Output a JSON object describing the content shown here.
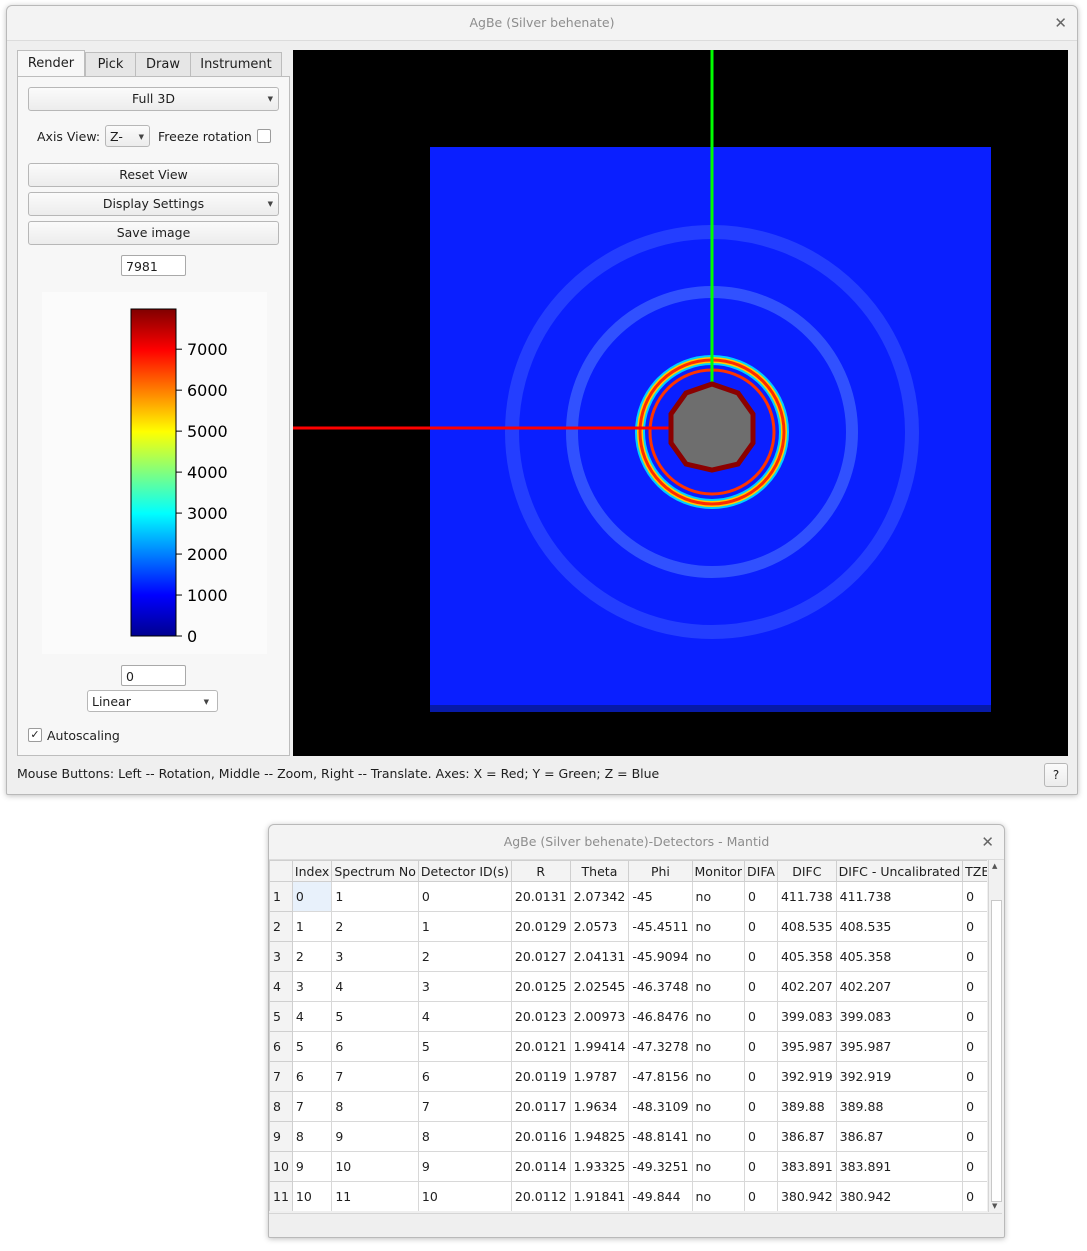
{
  "main_window": {
    "title": "AgBe (Silver behenate)",
    "tabs": [
      "Render",
      "Pick",
      "Draw",
      "Instrument"
    ],
    "render_mode": "Full 3D",
    "axis_view_label": "Axis View:",
    "axis_view_value": "Z-",
    "freeze_rotation_label": "Freeze rotation",
    "freeze_rotation_checked": false,
    "reset_view_label": "Reset View",
    "display_settings_label": "Display Settings",
    "save_image_label": "Save image",
    "colorbar_max": "7981",
    "colorbar_min": "0",
    "colorbar_ticks": [
      "7000",
      "6000",
      "5000",
      "4000",
      "3000",
      "2000",
      "1000",
      "0"
    ],
    "scale_type": "Linear",
    "autoscaling_label": "Autoscaling",
    "autoscaling_checked": true,
    "status_text": "Mouse Buttons: Left -- Rotation, Middle -- Zoom, Right -- Translate. Axes: X = Red; Y = Green; Z = Blue",
    "help_label": "?"
  },
  "table_window": {
    "title": "AgBe (Silver behenate)-Detectors - Mantid",
    "columns": [
      "Index",
      "Spectrum No",
      "Detector ID(s)",
      "R",
      "Theta",
      "Phi",
      "Monitor",
      "DIFA",
      "DIFC",
      "DIFC - Uncalibrated",
      "TZERO"
    ],
    "row_headers": [
      "1",
      "2",
      "3",
      "4",
      "5",
      "6",
      "7",
      "8",
      "9",
      "10",
      "11"
    ],
    "rows": [
      [
        "0",
        "1",
        "0",
        "20.0131",
        "2.07342",
        "-45",
        "no",
        "0",
        "411.738",
        "411.738",
        "0"
      ],
      [
        "1",
        "2",
        "1",
        "20.0129",
        "2.0573",
        "-45.4511",
        "no",
        "0",
        "408.535",
        "408.535",
        "0"
      ],
      [
        "2",
        "3",
        "2",
        "20.0127",
        "2.04131",
        "-45.9094",
        "no",
        "0",
        "405.358",
        "405.358",
        "0"
      ],
      [
        "3",
        "4",
        "3",
        "20.0125",
        "2.02545",
        "-46.3748",
        "no",
        "0",
        "402.207",
        "402.207",
        "0"
      ],
      [
        "4",
        "5",
        "4",
        "20.0123",
        "2.00973",
        "-46.8476",
        "no",
        "0",
        "399.083",
        "399.083",
        "0"
      ],
      [
        "5",
        "6",
        "5",
        "20.0121",
        "1.99414",
        "-47.3278",
        "no",
        "0",
        "395.987",
        "395.987",
        "0"
      ],
      [
        "6",
        "7",
        "6",
        "20.0119",
        "1.9787",
        "-47.8156",
        "no",
        "0",
        "392.919",
        "392.919",
        "0"
      ],
      [
        "7",
        "8",
        "7",
        "20.0117",
        "1.9634",
        "-48.3109",
        "no",
        "0",
        "389.88",
        "389.88",
        "0"
      ],
      [
        "8",
        "9",
        "8",
        "20.0116",
        "1.94825",
        "-48.8141",
        "no",
        "0",
        "386.87",
        "386.87",
        "0"
      ],
      [
        "9",
        "10",
        "9",
        "20.0114",
        "1.93325",
        "-49.3251",
        "no",
        "0",
        "383.891",
        "383.891",
        "0"
      ],
      [
        "10",
        "11",
        "10",
        "20.0112",
        "1.91841",
        "-49.844",
        "no",
        "0",
        "380.942",
        "380.942",
        "0"
      ]
    ]
  },
  "colors": {
    "detector_background": "#0a1fff",
    "x_axis": "#ff0000",
    "y_axis": "#00ff00",
    "beamstop": "#6e6e6e",
    "beamstop_edge": "#8b0000"
  },
  "icons": {
    "close": "close-icon",
    "dropdown": "chevron-down-icon",
    "check": "check-icon"
  }
}
